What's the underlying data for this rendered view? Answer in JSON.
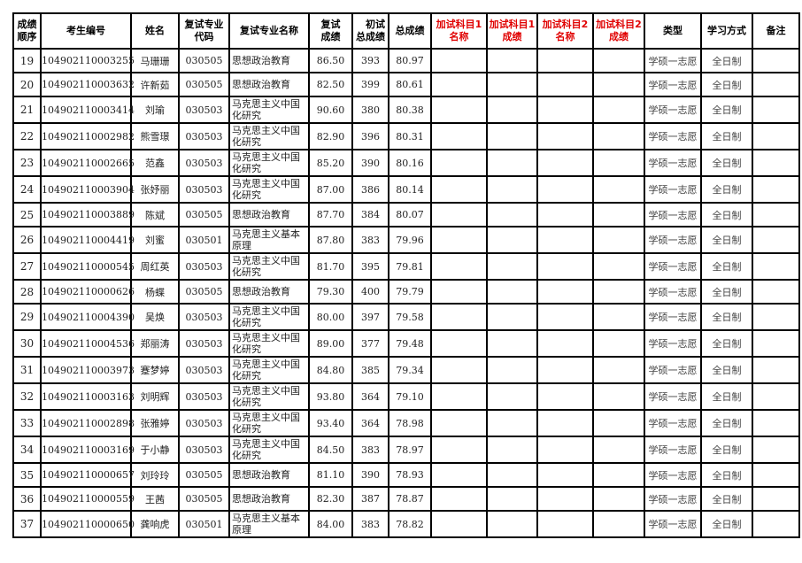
{
  "headers": [
    "成绩顺序",
    "考生编号",
    "姓名",
    "复试专业代码",
    "复试专业名称",
    "复试成绩",
    "初试总成绩",
    "总成绩",
    "加试科目1名称",
    "加试科目1成绩",
    "加试科目2名称",
    "加试科目2成绩",
    "类型",
    "学习方式",
    "备注"
  ],
  "header_lines": [
    [
      "成绩",
      "顺序"
    ],
    [
      "考生编号"
    ],
    [
      "姓名"
    ],
    [
      "复试专业",
      "代码"
    ],
    [
      "复试专业名称"
    ],
    [
      "复试",
      "成绩"
    ],
    [
      "初试",
      "总成绩"
    ],
    [
      "总成绩"
    ],
    [
      "加试科目1",
      "名称"
    ],
    [
      "加试科目1",
      "成绩"
    ],
    [
      "加试科目2",
      "名称"
    ],
    [
      "加试科目2",
      "成绩"
    ],
    [
      "类型"
    ],
    [
      "学习方式"
    ],
    [
      "备注"
    ]
  ],
  "header_red_color": "#e00000",
  "rows": [
    {
      "rank": "19",
      "id": "104902110003255",
      "name": "马珊珊",
      "code": "030505",
      "major": "思想政治教育",
      "retest": "86.50",
      "initial": "393",
      "total": "80.97",
      "type": "学硕一志愿",
      "mode": "全日制"
    },
    {
      "rank": "20",
      "id": "104902110003632",
      "name": "许新茹",
      "code": "030505",
      "major": "思想政治教育",
      "retest": "82.50",
      "initial": "399",
      "total": "80.61",
      "type": "学硕一志愿",
      "mode": "全日制"
    },
    {
      "rank": "21",
      "id": "104902110003414",
      "name": "刘瑜",
      "code": "030503",
      "major": "马克思主义中国化研究",
      "retest": "90.60",
      "initial": "380",
      "total": "80.38",
      "type": "学硕一志愿",
      "mode": "全日制"
    },
    {
      "rank": "22",
      "id": "104902110002982",
      "name": "熊雪璟",
      "code": "030503",
      "major": "马克思主义中国化研究",
      "retest": "82.90",
      "initial": "396",
      "total": "80.31",
      "type": "学硕一志愿",
      "mode": "全日制"
    },
    {
      "rank": "23",
      "id": "104902110002665",
      "name": "范鑫",
      "code": "030503",
      "major": "马克思主义中国化研究",
      "retest": "85.20",
      "initial": "390",
      "total": "80.16",
      "type": "学硕一志愿",
      "mode": "全日制"
    },
    {
      "rank": "24",
      "id": "104902110003904",
      "name": "张妤丽",
      "code": "030503",
      "major": "马克思主义中国化研究",
      "retest": "87.00",
      "initial": "386",
      "total": "80.14",
      "type": "学硕一志愿",
      "mode": "全日制"
    },
    {
      "rank": "25",
      "id": "104902110003889",
      "name": "陈斌",
      "code": "030505",
      "major": "思想政治教育",
      "retest": "87.70",
      "initial": "384",
      "total": "80.07",
      "type": "学硕一志愿",
      "mode": "全日制"
    },
    {
      "rank": "26",
      "id": "104902110004419",
      "name": "刘蜜",
      "code": "030501",
      "major": "马克思主义基本原理",
      "retest": "87.80",
      "initial": "383",
      "total": "79.96",
      "type": "学硕一志愿",
      "mode": "全日制"
    },
    {
      "rank": "27",
      "id": "104902110000545",
      "name": "周红英",
      "code": "030503",
      "major": "马克思主义中国化研究",
      "retest": "81.70",
      "initial": "395",
      "total": "79.81",
      "type": "学硕一志愿",
      "mode": "全日制"
    },
    {
      "rank": "28",
      "id": "104902110000626",
      "name": "杨蝶",
      "code": "030505",
      "major": "思想政治教育",
      "retest": "79.30",
      "initial": "400",
      "total": "79.79",
      "type": "学硕一志愿",
      "mode": "全日制"
    },
    {
      "rank": "29",
      "id": "104902110004390",
      "name": "吴焕",
      "code": "030503",
      "major": "马克思主义中国化研究",
      "retest": "80.00",
      "initial": "397",
      "total": "79.58",
      "type": "学硕一志愿",
      "mode": "全日制"
    },
    {
      "rank": "30",
      "id": "104902110004536",
      "name": "郑丽涛",
      "code": "030503",
      "major": "马克思主义中国化研究",
      "retest": "89.00",
      "initial": "377",
      "total": "79.48",
      "type": "学硕一志愿",
      "mode": "全日制"
    },
    {
      "rank": "31",
      "id": "104902110003973",
      "name": "蹇梦婷",
      "code": "030503",
      "major": "马克思主义中国化研究",
      "retest": "84.80",
      "initial": "385",
      "total": "79.34",
      "type": "学硕一志愿",
      "mode": "全日制"
    },
    {
      "rank": "32",
      "id": "104902110003163",
      "name": "刘明辉",
      "code": "030503",
      "major": "马克思主义中国化研究",
      "retest": "93.80",
      "initial": "364",
      "total": "79.10",
      "type": "学硕一志愿",
      "mode": "全日制"
    },
    {
      "rank": "33",
      "id": "104902110002898",
      "name": "张雅婷",
      "code": "030503",
      "major": "马克思主义中国化研究",
      "retest": "93.40",
      "initial": "364",
      "total": "78.98",
      "type": "学硕一志愿",
      "mode": "全日制"
    },
    {
      "rank": "34",
      "id": "104902110003169",
      "name": "于小静",
      "code": "030503",
      "major": "马克思主义中国化研究",
      "retest": "84.50",
      "initial": "383",
      "total": "78.97",
      "type": "学硕一志愿",
      "mode": "全日制"
    },
    {
      "rank": "35",
      "id": "104902110000657",
      "name": "刘玲玲",
      "code": "030505",
      "major": "思想政治教育",
      "retest": "81.10",
      "initial": "390",
      "total": "78.93",
      "type": "学硕一志愿",
      "mode": "全日制"
    },
    {
      "rank": "36",
      "id": "104902110000559",
      "name": "王茜",
      "code": "030505",
      "major": "思想政治教育",
      "retest": "82.30",
      "initial": "387",
      "total": "78.87",
      "type": "学硕一志愿",
      "mode": "全日制"
    },
    {
      "rank": "37",
      "id": "104902110000650",
      "name": "龚响虎",
      "code": "030501",
      "major": "马克思主义基本原理",
      "retest": "84.00",
      "initial": "383",
      "total": "78.82",
      "type": "学硕一志愿",
      "mode": "全日制"
    }
  ]
}
